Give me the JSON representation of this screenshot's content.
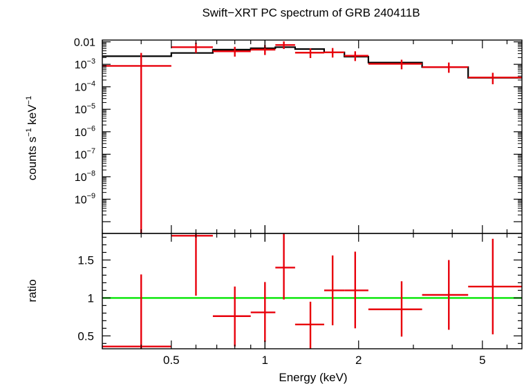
{
  "chart_data": [
    {
      "type": "scatter",
      "panel": "spectrum",
      "title": "Swift−XRT PC spectrum of GRB 240411B",
      "ylabel_parts": {
        "a": "counts s",
        "sup_a": "−1",
        "b": " keV",
        "sup_b": "−1"
      },
      "xlabel": "",
      "x_scale": "log",
      "y_scale": "log",
      "xlim": [
        0.3,
        6.7
      ],
      "ylim": [
        3e-11,
        0.012
      ],
      "y_ticks": [
        {
          "value": 0.01,
          "base": "0.01",
          "exp": ""
        },
        {
          "value": 0.001,
          "base": "10",
          "exp": "−3"
        },
        {
          "value": 0.0001,
          "base": "10",
          "exp": "−4"
        },
        {
          "value": 1e-05,
          "base": "10",
          "exp": "−5"
        },
        {
          "value": 1e-06,
          "base": "10",
          "exp": "−6"
        },
        {
          "value": 1e-07,
          "base": "10",
          "exp": "−7"
        },
        {
          "value": 1e-08,
          "base": "10",
          "exp": "−8"
        },
        {
          "value": 1e-09,
          "base": "10",
          "exp": "−9"
        }
      ],
      "series": [
        {
          "kind": "data",
          "color": "#e8000b",
          "points": [
            {
              "xlo": 0.3,
              "xhi": 0.5,
              "x": 0.4,
              "y": 0.00085,
              "ylo": 3e-11,
              "yhi": 0.0032
            },
            {
              "xlo": 0.5,
              "xhi": 0.68,
              "x": 0.6,
              "y": 0.0058,
              "ylo": 0.0032,
              "yhi": 0.0092
            },
            {
              "xlo": 0.68,
              "xhi": 0.9,
              "x": 0.8,
              "y": 0.0038,
              "ylo": 0.0022,
              "yhi": 0.006
            },
            {
              "xlo": 0.9,
              "xhi": 1.08,
              "x": 1.0,
              "y": 0.0045,
              "ylo": 0.0026,
              "yhi": 0.0072
            },
            {
              "xlo": 1.08,
              "xhi": 1.25,
              "x": 1.15,
              "y": 0.0072,
              "ylo": 0.0048,
              "yhi": 0.0105
            },
            {
              "xlo": 1.25,
              "xhi": 1.55,
              "x": 1.4,
              "y": 0.0033,
              "ylo": 0.0019,
              "yhi": 0.0051
            },
            {
              "xlo": 1.55,
              "xhi": 1.8,
              "x": 1.65,
              "y": 0.0034,
              "ylo": 0.002,
              "yhi": 0.0053
            },
            {
              "xlo": 1.8,
              "xhi": 2.15,
              "x": 1.95,
              "y": 0.0024,
              "ylo": 0.0014,
              "yhi": 0.0038
            },
            {
              "xlo": 2.15,
              "xhi": 3.2,
              "x": 2.75,
              "y": 0.00105,
              "ylo": 0.0006,
              "yhi": 0.0016
            },
            {
              "xlo": 3.2,
              "xhi": 4.5,
              "x": 3.9,
              "y": 0.00075,
              "ylo": 0.00042,
              "yhi": 0.0012
            },
            {
              "xlo": 4.5,
              "xhi": 6.7,
              "x": 5.4,
              "y": 0.00026,
              "ylo": 0.00013,
              "yhi": 0.00042
            }
          ]
        },
        {
          "kind": "model",
          "color": "#000000",
          "steps": [
            {
              "xlo": 0.3,
              "xhi": 0.5,
              "y": 0.0023
            },
            {
              "xlo": 0.5,
              "xhi": 0.68,
              "y": 0.0032
            },
            {
              "xlo": 0.68,
              "xhi": 0.9,
              "y": 0.0045
            },
            {
              "xlo": 0.9,
              "xhi": 1.08,
              "y": 0.0052
            },
            {
              "xlo": 1.08,
              "xhi": 1.25,
              "y": 0.0058
            },
            {
              "xlo": 1.25,
              "xhi": 1.55,
              "y": 0.0048
            },
            {
              "xlo": 1.55,
              "xhi": 1.8,
              "y": 0.0034
            },
            {
              "xlo": 1.8,
              "xhi": 2.15,
              "y": 0.0022
            },
            {
              "xlo": 2.15,
              "xhi": 3.2,
              "y": 0.0012
            },
            {
              "xlo": 3.2,
              "xhi": 4.5,
              "y": 0.00075
            },
            {
              "xlo": 4.5,
              "xhi": 6.7,
              "y": 0.00025
            }
          ]
        }
      ]
    },
    {
      "type": "scatter",
      "panel": "ratio",
      "xlabel": "Energy (keV)",
      "ylabel": "ratio",
      "x_scale": "log",
      "xlim": [
        0.3,
        6.7
      ],
      "ylim": [
        0.33,
        1.85
      ],
      "x_ticks": [
        {
          "value": 0.5,
          "label": "0.5"
        },
        {
          "value": 1,
          "label": "1"
        },
        {
          "value": 2,
          "label": "2"
        },
        {
          "value": 5,
          "label": "5"
        }
      ],
      "y_ticks": [
        {
          "value": 0.5,
          "label": "0.5"
        },
        {
          "value": 1,
          "label": "1"
        },
        {
          "value": 1.5,
          "label": "1.5"
        }
      ],
      "reference_line": {
        "y": 1,
        "color": "#00e600"
      },
      "series": [
        {
          "kind": "ratio",
          "color": "#e8000b",
          "points": [
            {
              "xlo": 0.3,
              "xhi": 0.5,
              "x": 0.4,
              "y": 0.36,
              "ylo": 0.33,
              "yhi": 1.31
            },
            {
              "xlo": 0.5,
              "xhi": 0.68,
              "x": 0.6,
              "y": 1.82,
              "ylo": 1.03,
              "yhi": 1.85
            },
            {
              "xlo": 0.68,
              "xhi": 0.9,
              "x": 0.8,
              "y": 0.76,
              "ylo": 0.36,
              "yhi": 1.15
            },
            {
              "xlo": 0.9,
              "xhi": 1.08,
              "x": 1.0,
              "y": 0.81,
              "ylo": 0.42,
              "yhi": 1.21
            },
            {
              "xlo": 1.08,
              "xhi": 1.25,
              "x": 1.15,
              "y": 1.4,
              "ylo": 0.98,
              "yhi": 1.85
            },
            {
              "xlo": 1.25,
              "xhi": 1.55,
              "x": 1.4,
              "y": 0.65,
              "ylo": 0.33,
              "yhi": 0.95
            },
            {
              "xlo": 1.55,
              "xhi": 1.8,
              "x": 1.65,
              "y": 1.1,
              "ylo": 0.64,
              "yhi": 1.56
            },
            {
              "xlo": 1.8,
              "xhi": 2.15,
              "x": 1.95,
              "y": 1.1,
              "ylo": 0.6,
              "yhi": 1.61
            },
            {
              "xlo": 2.15,
              "xhi": 3.2,
              "x": 2.75,
              "y": 0.85,
              "ylo": 0.49,
              "yhi": 1.22
            },
            {
              "xlo": 3.2,
              "xhi": 4.5,
              "x": 3.9,
              "y": 1.04,
              "ylo": 0.58,
              "yhi": 1.5
            },
            {
              "xlo": 4.5,
              "xhi": 6.7,
              "x": 5.4,
              "y": 1.15,
              "ylo": 0.52,
              "yhi": 1.78
            }
          ]
        }
      ]
    }
  ]
}
